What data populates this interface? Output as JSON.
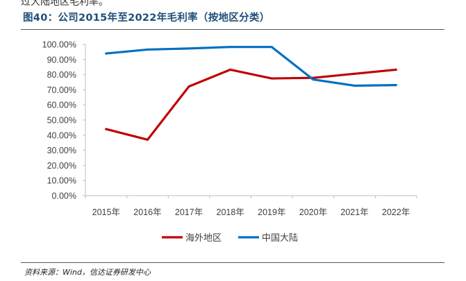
{
  "top_snippet": "过大陆地区毛利率。",
  "figure_title": "图40：公司2015年至2022年毛利率（按地区分类）",
  "source_note": "资料来源：Wind，信达证券研发中心",
  "chart_data": {
    "type": "line",
    "title": "图40：公司2015年至2022年毛利率（按地区分类）",
    "xlabel": "",
    "ylabel": "",
    "categories": [
      "2015年",
      "2016年",
      "2017年",
      "2018年",
      "2019年",
      "2020年",
      "2021年",
      "2022年"
    ],
    "ylim": [
      0,
      100
    ],
    "yticks": [
      "0.00%",
      "10.00%",
      "20.00%",
      "30.00%",
      "40.00%",
      "50.00%",
      "60.00%",
      "70.00%",
      "80.00%",
      "90.00%",
      "100.00%"
    ],
    "grid": false,
    "legend_position": "bottom",
    "series": [
      {
        "name": "海外地区",
        "color": "#c00000",
        "values": [
          44.0,
          37.0,
          72.2,
          83.3,
          77.5,
          77.9,
          80.6,
          83.3
        ]
      },
      {
        "name": "中国大陆",
        "color": "#0070c0",
        "values": [
          94.0,
          96.6,
          97.3,
          98.3,
          98.3,
          76.8,
          72.7,
          73.1
        ]
      }
    ]
  }
}
